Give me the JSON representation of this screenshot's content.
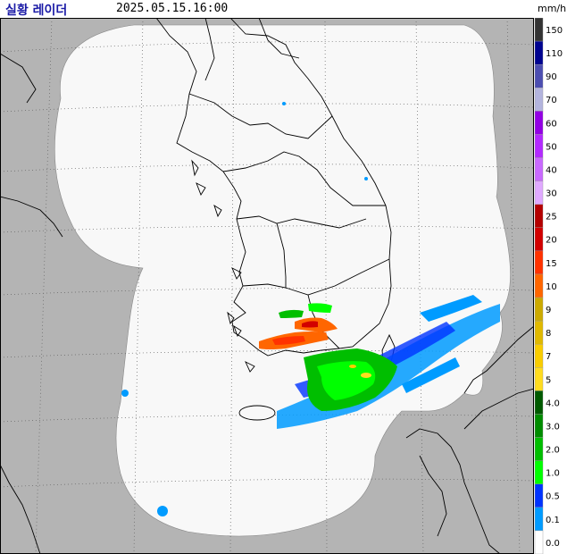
{
  "header": {
    "title": "실황 레이더",
    "timestamp": "2025.05.15.16:00",
    "unit": "mm/h"
  },
  "legend": {
    "levels": [
      {
        "label": "150",
        "color": "#333333"
      },
      {
        "label": "110",
        "color": "#000390"
      },
      {
        "label": "90",
        "color": "#4c4eb1"
      },
      {
        "label": "70",
        "color": "#b3b4de"
      },
      {
        "label": "60",
        "color": "#9300e4"
      },
      {
        "label": "50",
        "color": "#b329ff"
      },
      {
        "label": "40",
        "color": "#c969ff"
      },
      {
        "label": "30",
        "color": "#e0a9ff"
      },
      {
        "label": "25",
        "color": "#b40000"
      },
      {
        "label": "20",
        "color": "#d20000"
      },
      {
        "label": "15",
        "color": "#ff3200"
      },
      {
        "label": "10",
        "color": "#ff6600"
      },
      {
        "label": "9",
        "color": "#ccaa00"
      },
      {
        "label": "8",
        "color": "#e0b900"
      },
      {
        "label": "7",
        "color": "#f9cd00"
      },
      {
        "label": "5",
        "color": "#ffdc1f"
      },
      {
        "label": "4.0",
        "color": "#005a00"
      },
      {
        "label": "3.0",
        "color": "#008c00"
      },
      {
        "label": "2.0",
        "color": "#00be00"
      },
      {
        "label": "1.0",
        "color": "#00ff00"
      },
      {
        "label": "0.5",
        "color": "#0033ff"
      },
      {
        "label": "0.1",
        "color": "#009bff"
      },
      {
        "label": "0.0",
        "color": "#ffffff"
      }
    ]
  },
  "colors": {
    "outside_coverage": "#b4b4b4",
    "coverage": "#f8f8f8",
    "coastline": "#000000",
    "grid": "#646464"
  }
}
